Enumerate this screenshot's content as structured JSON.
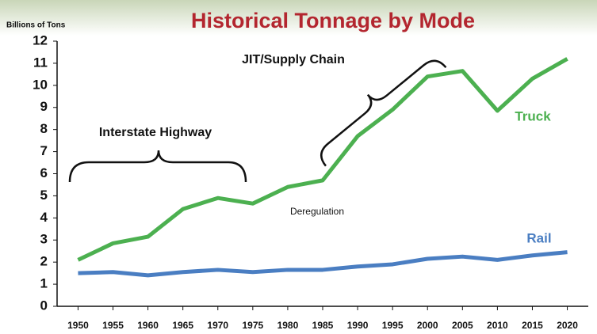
{
  "chart_data": {
    "type": "line",
    "title": "Historical Tonnage by Mode",
    "y_label": "Billions of Tons",
    "x": [
      1950,
      1955,
      1960,
      1965,
      1970,
      1975,
      1980,
      1985,
      1990,
      1995,
      2000,
      2005,
      2010,
      2015,
      2020
    ],
    "series": [
      {
        "name": "Truck",
        "color": "#4cb050",
        "values": [
          2.1,
          2.85,
          3.15,
          4.4,
          4.9,
          4.65,
          5.4,
          5.7,
          7.7,
          8.9,
          10.4,
          10.65,
          8.85,
          10.3,
          11.2
        ]
      },
      {
        "name": "Rail",
        "color": "#4a7ec2",
        "values": [
          1.5,
          1.55,
          1.4,
          1.55,
          1.65,
          1.55,
          1.65,
          1.65,
          1.8,
          1.9,
          2.15,
          2.25,
          2.1,
          2.3,
          2.45
        ]
      }
    ],
    "xlim": [
      1947,
      2023
    ],
    "xticks": [
      1950,
      1955,
      1960,
      1965,
      1970,
      1975,
      1980,
      1985,
      1990,
      1995,
      2000,
      2005,
      2010,
      2015,
      2020
    ],
    "ylim": [
      0,
      12
    ],
    "yticks": [
      0,
      1,
      2,
      3,
      4,
      5,
      6,
      7,
      8,
      9,
      10,
      11,
      12
    ],
    "grid": false,
    "annotations": [
      "Interstate Highway",
      "JIT/Supply Chain",
      "Deregulation"
    ]
  }
}
